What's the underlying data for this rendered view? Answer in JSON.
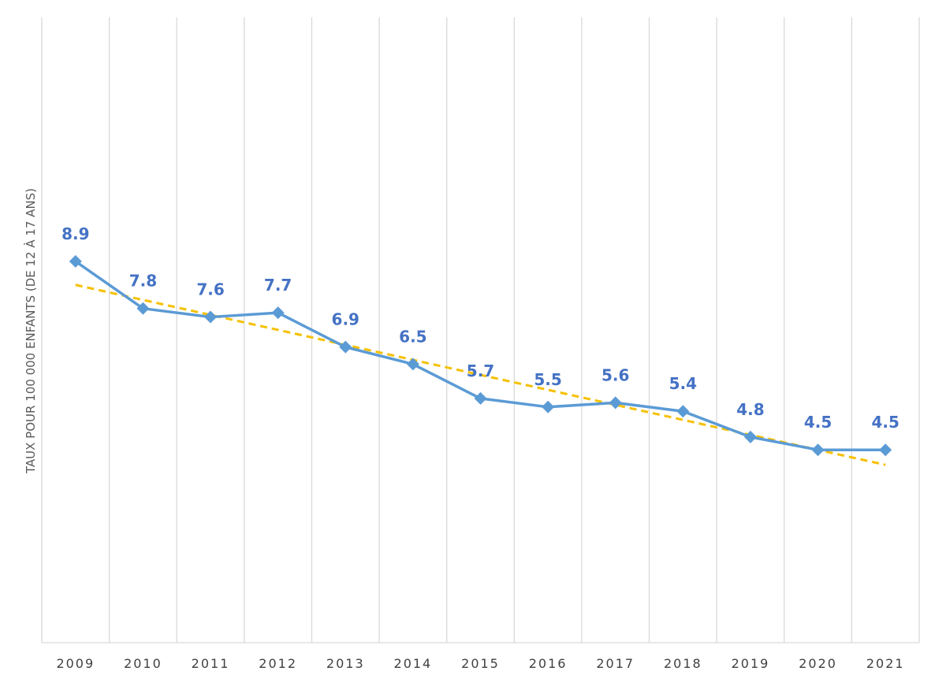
{
  "chart_data": {
    "type": "line",
    "title": "",
    "xlabel": "",
    "ylabel": "TAUX POUR 100 000 ENFANTS (DE 12 À 17 ANS)",
    "categories": [
      "2009",
      "2010",
      "2011",
      "2012",
      "2013",
      "2014",
      "2015",
      "2016",
      "2017",
      "2018",
      "2019",
      "2020",
      "2021"
    ],
    "series": [
      {
        "values": [
          8.9,
          7.8,
          7.6,
          7.7,
          6.9,
          6.5,
          5.7,
          5.5,
          5.6,
          5.4,
          4.8,
          4.5,
          4.5
        ],
        "labels": [
          "8.9",
          "7.8",
          "7.6",
          "7.7",
          "6.9",
          "6.5",
          "5.7",
          "5.5",
          "5.6",
          "5.4",
          "4.8",
          "4.5",
          "4.5"
        ],
        "color": "#5b9bd5",
        "marker": "diamond"
      }
    ],
    "trendline": {
      "type": "linear",
      "values": [
        8.35,
        8.0,
        7.65,
        7.3,
        6.95,
        6.6,
        6.25,
        5.9,
        5.55,
        5.2,
        4.85,
        4.5,
        4.15
      ],
      "color": "#f5c000",
      "style": "dashed"
    },
    "ylim": [
      0,
      15
    ],
    "grid": "vertical",
    "legend": "none"
  }
}
